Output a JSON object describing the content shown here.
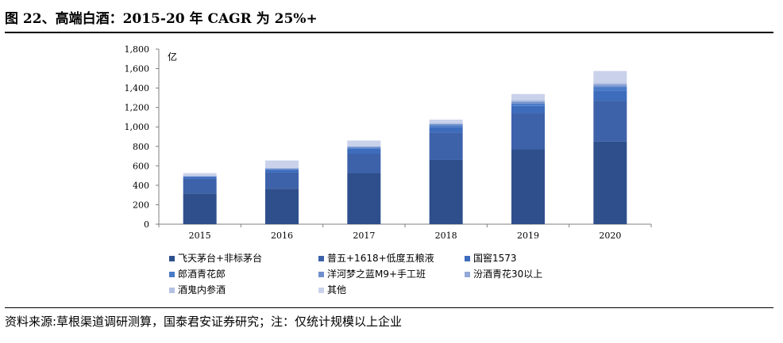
{
  "figure": {
    "title": "图 22、高端白酒：2015-20 年 CAGR 为 25%+",
    "source": "资料来源:草根渠道调研测算，国泰君安证券研究；注：仅统计规模以上企业"
  },
  "chart_data": {
    "type": "bar",
    "stacked": true,
    "unit_label": "亿",
    "categories": [
      "2015",
      "2016",
      "2017",
      "2018",
      "2019",
      "2020"
    ],
    "ylim": [
      0,
      1800
    ],
    "yticks": [
      0,
      200,
      400,
      600,
      800,
      1000,
      1200,
      1400,
      1600,
      1800
    ],
    "ytick_labels": [
      "0",
      "200",
      "400",
      "600",
      "800",
      "1,000",
      "1,200",
      "1,400",
      "1,600",
      "1,800"
    ],
    "grid": false,
    "legend_position": "bottom",
    "series": [
      {
        "name": "飞天茅台+非标茅台",
        "color": "#2e4f8c",
        "values": [
          315,
          365,
          525,
          660,
          770,
          850
        ]
      },
      {
        "name": "普五+1618+低度五粮液",
        "color": "#3d62aa",
        "values": [
          150,
          165,
          200,
          280,
          370,
          420
        ]
      },
      {
        "name": "国窖1573",
        "color": "#3e6cbc",
        "values": [
          20,
          30,
          50,
          60,
          75,
          105
        ]
      },
      {
        "name": "郎酒青花郎",
        "color": "#4a7bc8",
        "values": [
          5,
          8,
          12,
          15,
          25,
          35
        ]
      },
      {
        "name": "洋河梦之蓝M9+手工班",
        "color": "#6f8fcd",
        "values": [
          3,
          5,
          8,
          12,
          15,
          18
        ]
      },
      {
        "name": "汾酒青花30以上",
        "color": "#93a8d6",
        "values": [
          2,
          3,
          5,
          8,
          12,
          15
        ]
      },
      {
        "name": "酒鬼内参酒",
        "color": "#b3c1e3",
        "values": [
          2,
          3,
          5,
          6,
          8,
          12
        ]
      },
      {
        "name": "其他",
        "color": "#c9d2ea",
        "values": [
          28,
          76,
          55,
          34,
          63,
          120
        ]
      }
    ]
  }
}
